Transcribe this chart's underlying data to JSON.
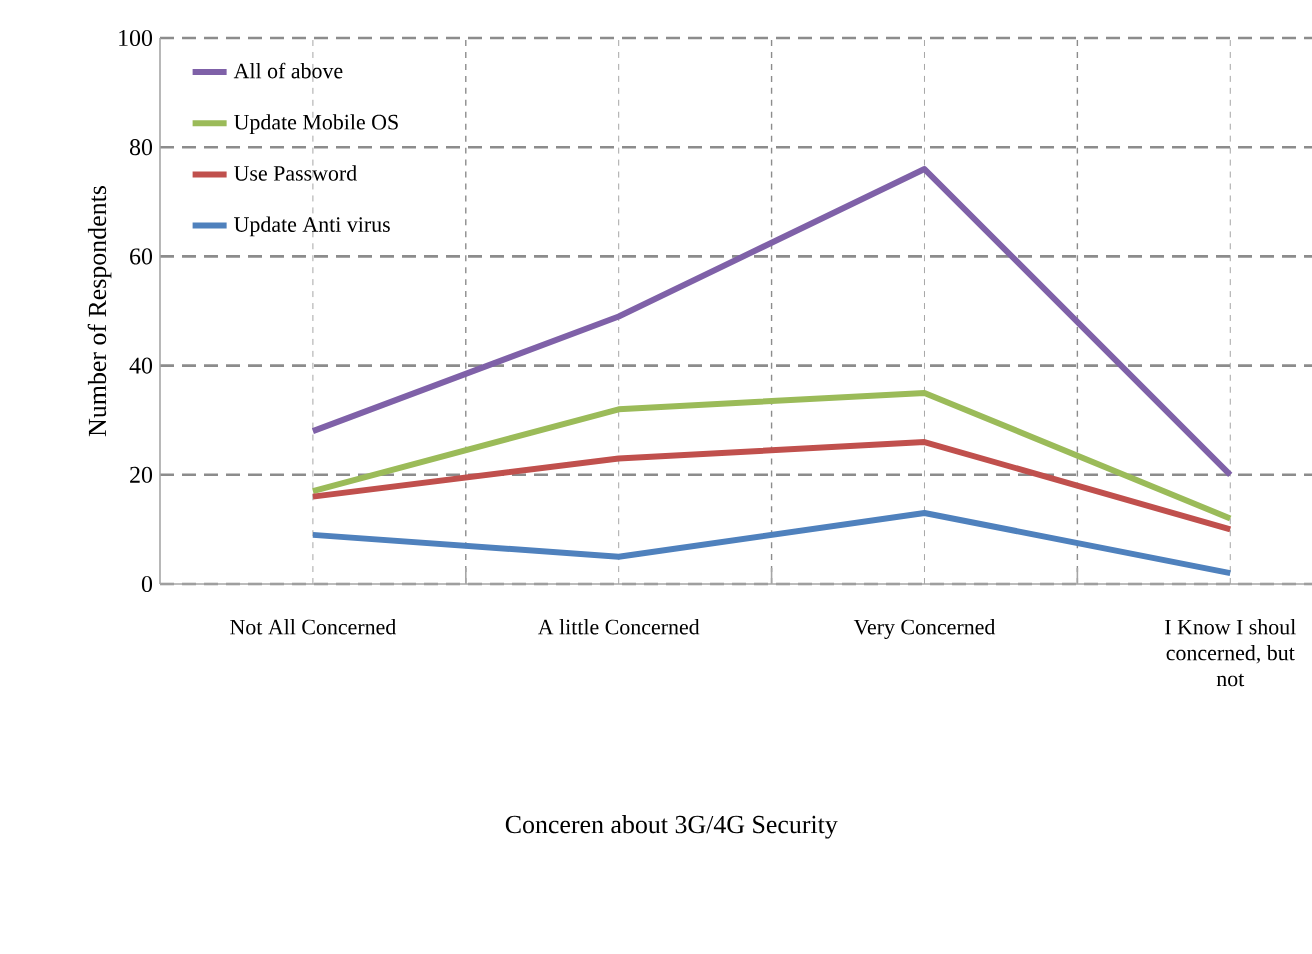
{
  "chart_data": {
    "type": "line",
    "xlabel": "Conceren about 3G/4G Security",
    "ylabel": "Number of Respondents",
    "categories": [
      "Not All Concerned",
      "A little Concerned",
      "Very Concerned",
      "I Know I shoul concerned, but not"
    ],
    "series": [
      {
        "name": "All of above",
        "color": "#7f61a8",
        "values": [
          28,
          49,
          76,
          20
        ]
      },
      {
        "name": "Update Mobile OS",
        "color": "#9bbb59",
        "values": [
          17,
          32,
          35,
          12
        ]
      },
      {
        "name": "Use Password",
        "color": "#c0504d",
        "values": [
          16,
          23,
          26,
          10
        ]
      },
      {
        "name": "Update Anti virus",
        "color": "#4f81bd",
        "values": [
          9,
          5,
          13,
          2
        ]
      }
    ],
    "ylim": [
      0,
      100
    ],
    "yticks": [
      0,
      20,
      40,
      60,
      80,
      100
    ],
    "grid": true,
    "legend": "top left",
    "marker": "none",
    "line_style": "solid"
  }
}
